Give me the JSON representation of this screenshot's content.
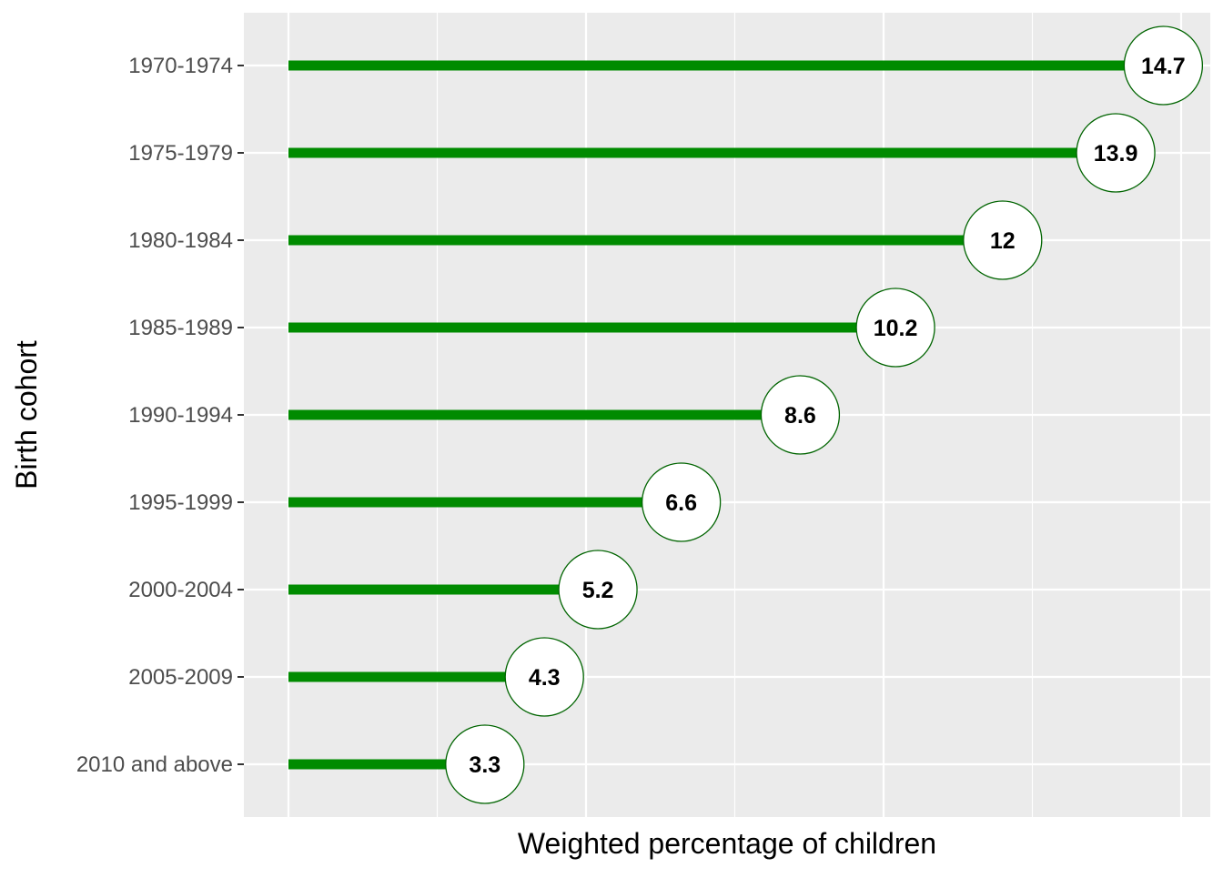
{
  "chart_data": {
    "type": "bar",
    "orientation": "horizontal",
    "style": "lollipop",
    "xlabel": "Weighted percentage of children",
    "ylabel": "Birth cohort",
    "xlim": [
      0,
      15
    ],
    "x_tick_labels_shown": false,
    "grid": true,
    "colors": {
      "stem": "#008B00",
      "marker_fill": "#FFFFFF",
      "marker_border": "#006400",
      "panel_bg": "#EBEBEB",
      "grid": "#FFFFFF"
    },
    "categories": [
      "1970-1974",
      "1975-1979",
      "1980-1984",
      "1985-1989",
      "1990-1994",
      "1995-1999",
      "2000-2004",
      "2005-2009",
      "2010 and above"
    ],
    "values": [
      14.7,
      13.9,
      12,
      10.2,
      8.6,
      6.6,
      5.2,
      4.3,
      3.3
    ]
  }
}
